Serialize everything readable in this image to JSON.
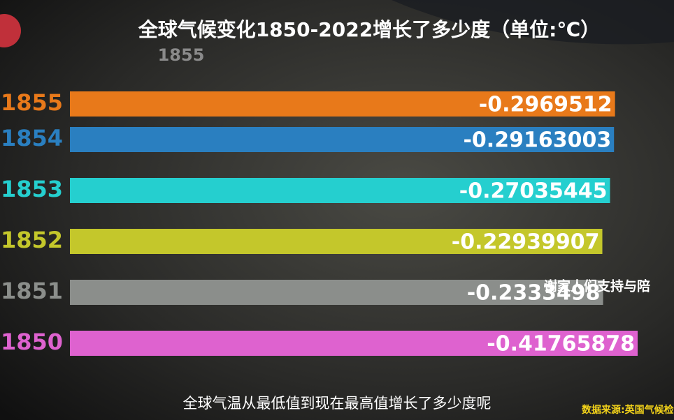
{
  "chart_data": {
    "type": "bar",
    "orientation": "horizontal",
    "title": "全球气候变化1850-2022增长了多少度（单位:℃）",
    "period_label": "1855",
    "categories": [
      "1855",
      "1854",
      "1853",
      "1852",
      "1851",
      "1850"
    ],
    "values": [
      -0.2969512,
      -0.29163003,
      -0.27035445,
      -0.22939907,
      -0.2333498,
      -0.41765878
    ],
    "colors": [
      "#e8791a",
      "#2a7fc0",
      "#25cfcf",
      "#c4c72b",
      "#8b8e8b",
      "#de62cf"
    ],
    "caption": "全球气温从最低值到现在最高值增长了多少度呢",
    "source": "数据来源:英国气候检",
    "overlay_text": "谢家人们支持与陪"
  }
}
